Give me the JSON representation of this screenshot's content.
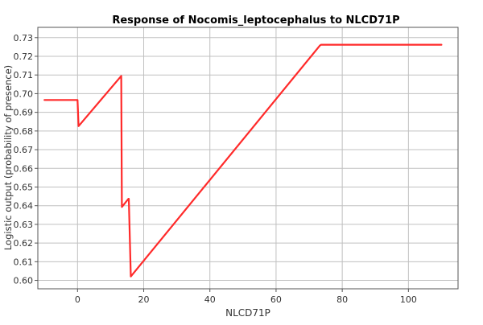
{
  "chart_data": {
    "type": "line",
    "title": "Response of Nocomis_leptocephalus to NLCD71P",
    "xlabel": "NLCD71P",
    "ylabel": "Logistic output (probability of presence)",
    "xlim": [
      -12,
      115
    ],
    "ylim": [
      0.5955,
      0.7355
    ],
    "x_ticks": [
      0,
      20,
      40,
      60,
      80,
      100
    ],
    "y_ticks": [
      0.6,
      0.61,
      0.62,
      0.63,
      0.64,
      0.65,
      0.66,
      0.67,
      0.68,
      0.69,
      0.7,
      0.71,
      0.72,
      0.73
    ],
    "grid": true,
    "series": [
      {
        "color": "#ff2a2a",
        "x": [
          -10,
          0,
          0.3,
          13.2,
          13.4,
          15.4,
          15.5,
          16.1,
          73.2,
          73.6,
          110
        ],
        "y": [
          0.6966,
          0.6966,
          0.6826,
          0.7095,
          0.6393,
          0.6437,
          0.6437,
          0.6021,
          0.7257,
          0.7262,
          0.7262
        ]
      }
    ]
  }
}
